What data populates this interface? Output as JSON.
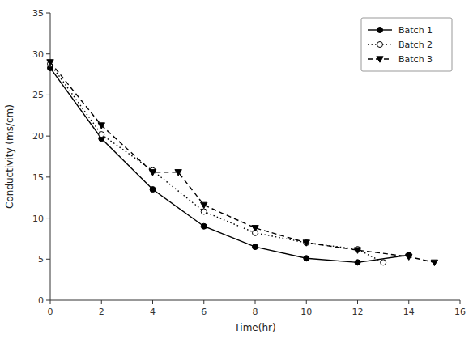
{
  "chart_data": {
    "type": "line",
    "xlabel": "Time(hr)",
    "ylabel": "Conductivity (ms/cm)",
    "series": [
      {
        "name": "Batch 1",
        "x": [
          0,
          2,
          4,
          6,
          8,
          10,
          12,
          14
        ],
        "values": [
          28.3,
          19.7,
          13.5,
          9.0,
          6.5,
          5.1,
          4.6,
          5.5
        ],
        "color": "#000000",
        "marker": "circle",
        "line_style": "solid"
      },
      {
        "name": "Batch 2",
        "x": [
          0,
          2,
          4,
          6,
          8,
          10,
          12,
          13
        ],
        "values": [
          28.8,
          20.2,
          15.8,
          10.8,
          8.2,
          7.0,
          6.2,
          4.6
        ],
        "color": "#000000",
        "marker": "circle-open",
        "line_style": "dotted"
      },
      {
        "name": "Batch 3",
        "x": [
          0,
          2,
          4,
          5,
          6,
          8,
          10,
          12,
          14,
          15
        ],
        "values": [
          29.0,
          21.3,
          15.6,
          15.6,
          11.6,
          8.8,
          7.0,
          6.1,
          5.3,
          4.6
        ],
        "color": "#000000",
        "marker": "triangle-down",
        "line_style": "dashed"
      }
    ],
    "xlim": [
      0,
      16
    ],
    "ylim": [
      0,
      35
    ],
    "xticks": [
      0,
      2,
      4,
      6,
      8,
      10,
      12,
      14,
      16
    ],
    "yticks": [
      0,
      5,
      10,
      15,
      20,
      25,
      30,
      35
    ],
    "legend": "upper right",
    "grid": false
  }
}
